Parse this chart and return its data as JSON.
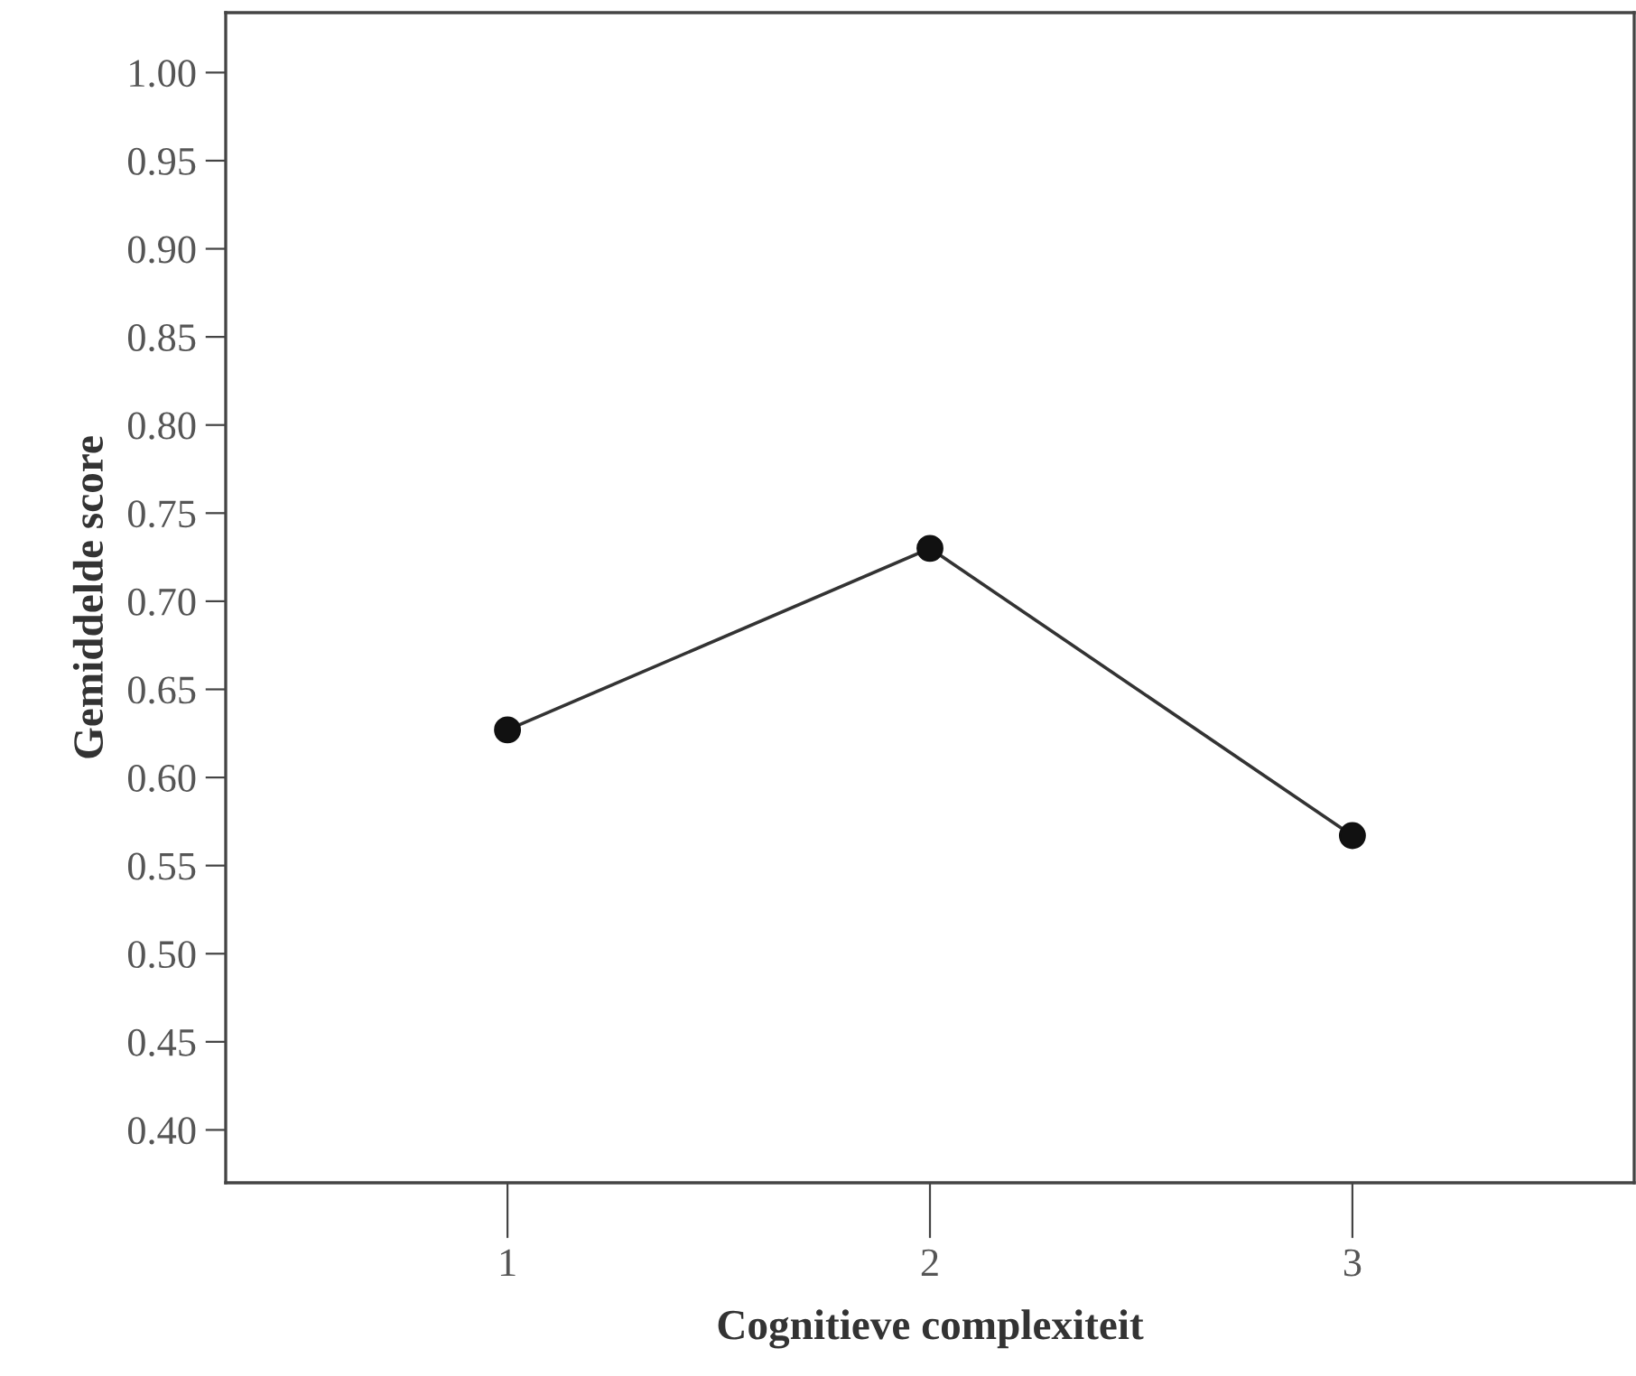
{
  "chart_data": {
    "type": "line",
    "xlabel": "Cognitieve complexiteit",
    "ylabel": "Gemiddelde score",
    "categories": [
      "1",
      "2",
      "3"
    ],
    "series": [
      {
        "color": "#333333",
        "values": [
          0.627,
          0.73,
          0.567
        ]
      }
    ],
    "ylim": [
      0.37,
      1.034
    ],
    "yticks": [
      {
        "value": 0.4,
        "label": "0.40"
      },
      {
        "value": 0.45,
        "label": "0.45"
      },
      {
        "value": 0.5,
        "label": "0.50"
      },
      {
        "value": 0.55,
        "label": "0.55"
      },
      {
        "value": 0.6,
        "label": "0.60"
      },
      {
        "value": 0.65,
        "label": "0.65"
      },
      {
        "value": 0.7,
        "label": "0.70"
      },
      {
        "value": 0.75,
        "label": "0.75"
      },
      {
        "value": 0.8,
        "label": "0.80"
      },
      {
        "value": 0.85,
        "label": "0.85"
      },
      {
        "value": 0.9,
        "label": "0.90"
      },
      {
        "value": 0.95,
        "label": "0.95"
      },
      {
        "value": 1.0,
        "label": "1.00"
      }
    ],
    "marker": "circle",
    "line_style": "solid",
    "grid": false,
    "legend": false
  }
}
